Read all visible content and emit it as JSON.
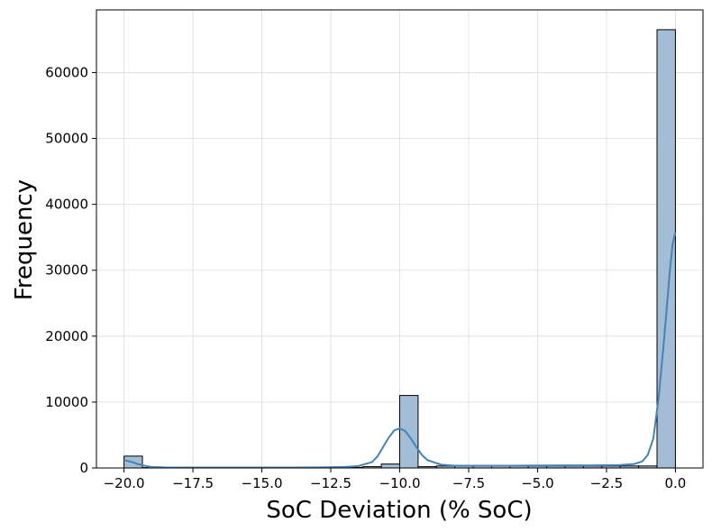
{
  "chart_data": {
    "type": "bar",
    "title": "",
    "xlabel": "SoC Deviation (% SoC)",
    "ylabel": "Frequency",
    "xlim": [
      -21.0,
      1.0
    ],
    "ylim": [
      0,
      69500
    ],
    "x_ticks": [
      -20.0,
      -17.5,
      -15.0,
      -12.5,
      -10.0,
      -7.5,
      -5.0,
      -2.5,
      0.0
    ],
    "x_tick_labels": [
      "−20.0",
      "−17.5",
      "−15.0",
      "−12.5",
      "−10.0",
      "−7.5",
      "−5.0",
      "−2.5",
      "0.0"
    ],
    "y_ticks": [
      0,
      10000,
      20000,
      30000,
      40000,
      50000,
      60000
    ],
    "y_tick_labels": [
      "0",
      "10000",
      "20000",
      "30000",
      "40000",
      "50000",
      "60000"
    ],
    "grid": true,
    "bin_edges": [
      -20.0,
      -19.333,
      -18.667,
      -18.0,
      -17.333,
      -16.667,
      -16.0,
      -15.333,
      -14.667,
      -14.0,
      -13.333,
      -12.667,
      -12.0,
      -11.333,
      -10.667,
      -10.0,
      -9.333,
      -8.667,
      -8.0,
      -7.333,
      -6.667,
      -6.0,
      -5.333,
      -4.667,
      -4.0,
      -3.333,
      -2.667,
      -2.0,
      -1.333,
      -0.667,
      0.0
    ],
    "counts": [
      1800,
      60,
      40,
      30,
      30,
      30,
      30,
      30,
      30,
      30,
      30,
      50,
      100,
      200,
      600,
      11000,
      200,
      300,
      300,
      300,
      300,
      300,
      300,
      300,
      300,
      300,
      300,
      300,
      300,
      66500
    ],
    "kde": {
      "x": [
        -20.0,
        -19.7,
        -19.5,
        -19.2,
        -19.0,
        -18.5,
        -18.0,
        -17.0,
        -16.0,
        -15.0,
        -14.0,
        -13.0,
        -12.0,
        -11.5,
        -11.0,
        -10.8,
        -10.6,
        -10.4,
        -10.2,
        -10.0,
        -9.8,
        -9.6,
        -9.4,
        -9.2,
        -9.0,
        -8.5,
        -8.0,
        -7.0,
        -6.0,
        -5.0,
        -4.0,
        -3.0,
        -2.0,
        -1.5,
        -1.2,
        -1.0,
        -0.8,
        -0.6,
        -0.4,
        -0.2,
        -0.1,
        0.0
      ],
      "y": [
        1200,
        900,
        600,
        300,
        150,
        80,
        70,
        70,
        70,
        70,
        70,
        80,
        150,
        300,
        900,
        1800,
        3200,
        4600,
        5700,
        6000,
        5600,
        4500,
        3200,
        2000,
        1200,
        500,
        350,
        350,
        350,
        380,
        400,
        400,
        450,
        600,
        1000,
        2000,
        4500,
        11000,
        20000,
        30000,
        34000,
        35800
      ]
    }
  }
}
